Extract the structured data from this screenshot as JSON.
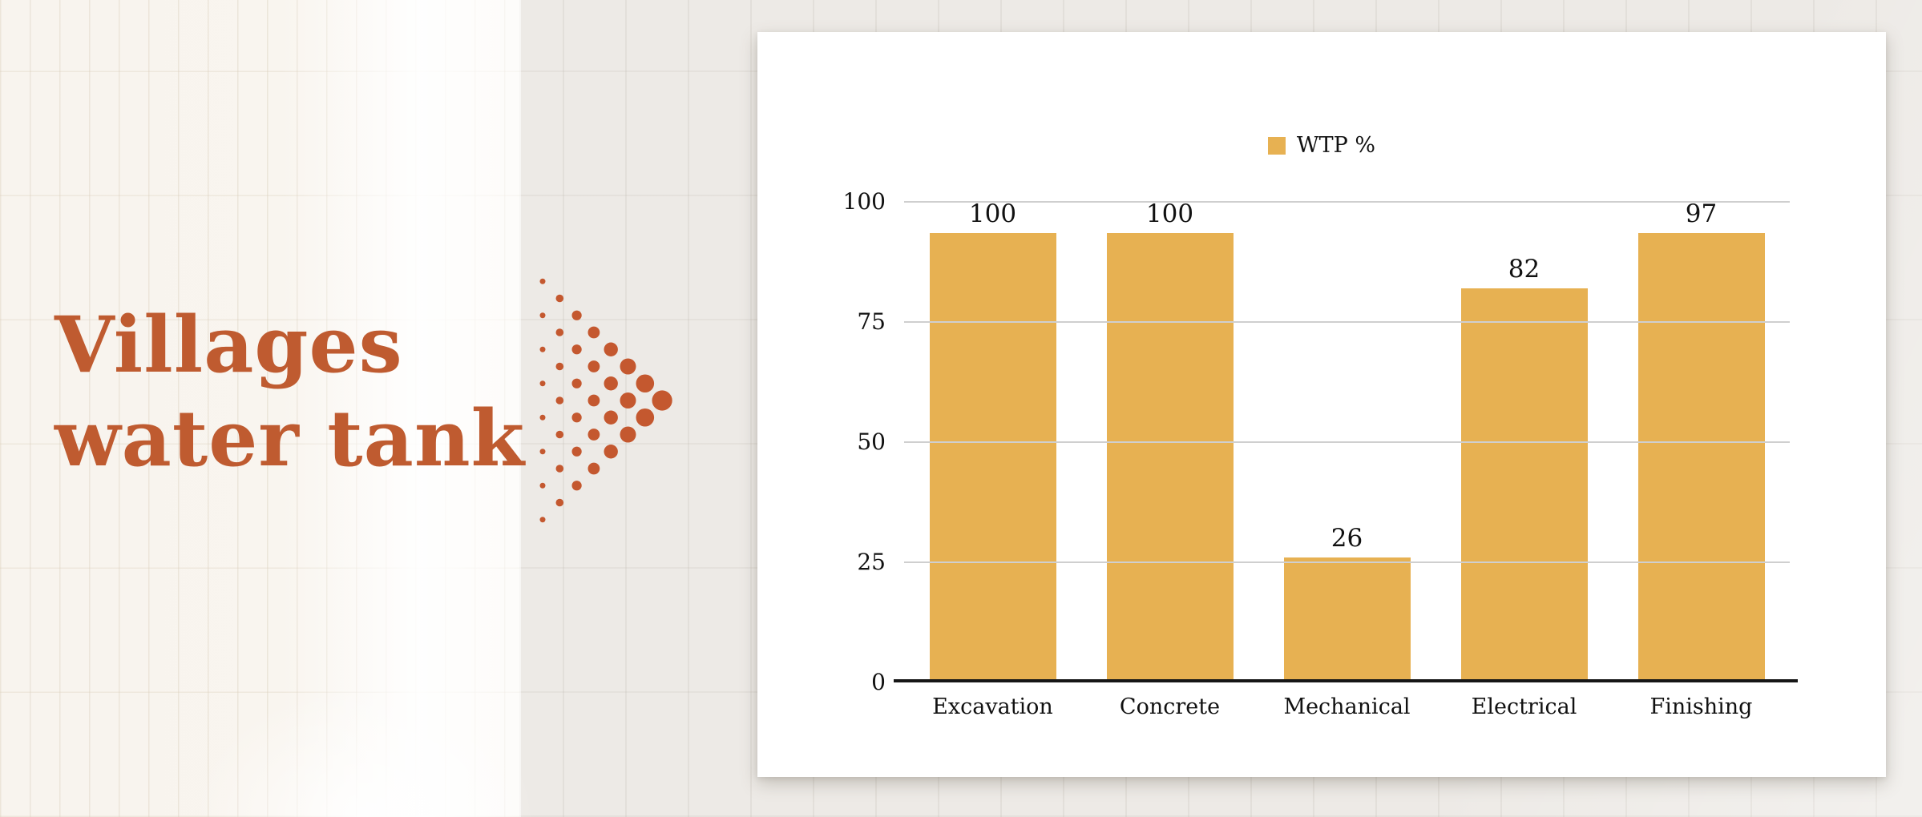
{
  "slide": {
    "title_lines": [
      "Villages",
      "water tank"
    ],
    "title_color": "#BF5B30",
    "decor_dot_color": "#C4582F"
  },
  "chart_data": {
    "type": "bar",
    "title": "",
    "categories": [
      "Excavation",
      "Concrete",
      "Mechanical",
      "Electrical",
      "Finishing"
    ],
    "series": [
      {
        "name": "WTP %",
        "values": [
          100,
          100,
          26,
          82,
          97
        ],
        "color": "#E7B152"
      }
    ],
    "value_labels": [
      100,
      100,
      26,
      82,
      97
    ],
    "xlabel": "",
    "ylabel": "",
    "ylim": [
      0,
      100
    ],
    "yticks": [
      0,
      25,
      50,
      75,
      100
    ],
    "grid": true,
    "legend": {
      "label": "WTP %",
      "position": "top-center",
      "swatch_color": "#E7B152"
    }
  },
  "colors": {
    "bar": "#E7B152",
    "gridline": "#CFCFCF",
    "axis_line": "#161616",
    "chart_text": "#111111",
    "card_background": "#FFFFFF",
    "background_left": "#F8F4EE",
    "background_right": "#EDEAE6"
  }
}
